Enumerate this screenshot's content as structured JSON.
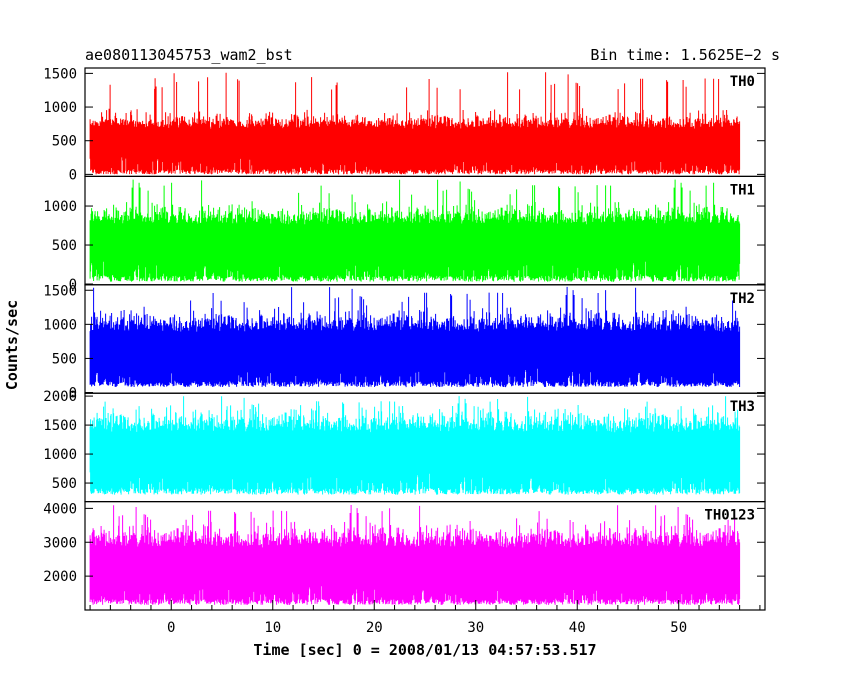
{
  "header": {
    "title": "ae080113045753_wam2_bst",
    "bin_time": "Bin time: 1.5625E−2 s"
  },
  "chart_data": {
    "type": "line",
    "xlabel": "Time [sec] 0 = 2008/01/13 04:57:53.517",
    "ylabel": "Counts/sec",
    "xlim": [
      -8.5,
      58.5
    ],
    "x_ticks": [
      0,
      10,
      20,
      30,
      40,
      50
    ],
    "x_data_range": [
      -8,
      56
    ],
    "grid": false,
    "panels": [
      {
        "name": "TH0",
        "color": "#ff0000",
        "ylim": [
          -30,
          1580
        ],
        "yticks": [
          0,
          500,
          1000,
          1500
        ],
        "mean": 480,
        "spread": 165,
        "min_floor": 0,
        "peak_max": 1520
      },
      {
        "name": "TH1",
        "color": "#00ff00",
        "ylim": [
          -10,
          1380
        ],
        "yticks": [
          0,
          500,
          1000
        ],
        "mean": 560,
        "spread": 170,
        "min_floor": 30,
        "peak_max": 1340
      },
      {
        "name": "TH2",
        "color": "#0000ff",
        "ylim": [
          -10,
          1580
        ],
        "yticks": [
          0,
          500,
          1000,
          1500
        ],
        "mean": 640,
        "spread": 210,
        "min_floor": 80,
        "peak_max": 1550
      },
      {
        "name": "TH3",
        "color": "#00ffff",
        "ylim": [
          180,
          2050
        ],
        "yticks": [
          500,
          1000,
          1500,
          2000
        ],
        "mean": 1050,
        "spread": 270,
        "min_floor": 300,
        "peak_max": 2000
      },
      {
        "name": "TH0123",
        "color": "#ff00ff",
        "ylim": [
          1000,
          4200
        ],
        "yticks": [
          2000,
          3000,
          4000
        ],
        "mean": 2300,
        "spread": 450,
        "min_floor": 1150,
        "peak_max": 4100
      }
    ]
  }
}
